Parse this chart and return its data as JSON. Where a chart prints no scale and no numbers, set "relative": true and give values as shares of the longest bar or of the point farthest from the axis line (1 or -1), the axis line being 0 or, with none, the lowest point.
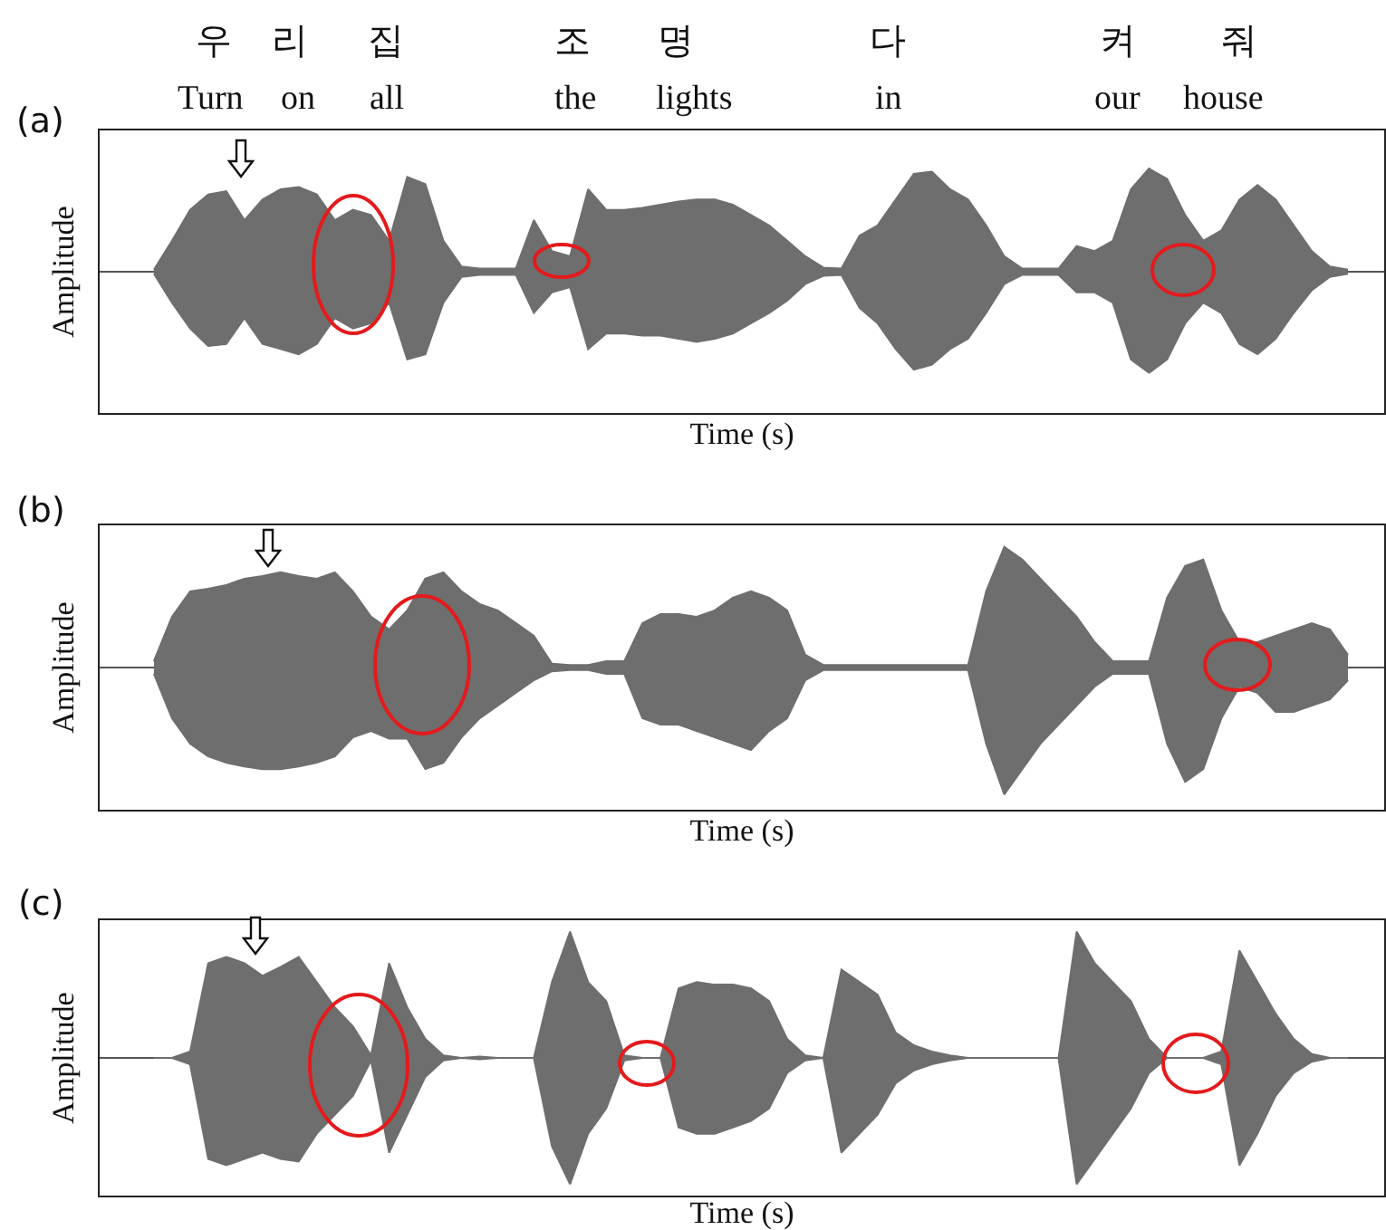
{
  "chart_data": [
    {
      "type": "area",
      "relative": true,
      "xlabel": "Time (s)",
      "ylabel": "Amplitude",
      "annotations": [
        "(a)",
        "우",
        "리",
        "집",
        "조",
        "명",
        "다",
        "켜",
        "줘",
        "Turn",
        "on",
        "all",
        "the",
        "lights",
        "in",
        "our",
        "house"
      ],
      "categories": [
        null,
        null,
        null,
        null,
        null,
        null,
        null,
        null,
        null,
        null,
        null,
        null,
        null,
        null,
        null,
        null,
        null,
        null,
        null,
        null,
        null,
        null,
        null,
        null,
        null,
        null,
        null,
        null,
        null,
        null,
        null,
        null,
        null,
        null,
        null,
        null,
        null,
        null,
        null,
        null,
        null,
        null,
        null,
        null,
        null,
        null,
        null,
        null,
        null,
        null,
        null,
        null,
        null,
        null,
        null,
        null,
        null,
        null,
        null,
        null,
        null,
        null,
        null,
        null,
        null,
        null,
        null
      ],
      "series": [
        {
          "color": "#6e6e6e",
          "values": [
            0.02,
            0.3,
            0.6,
            0.75,
            0.78,
            0.5,
            0.7,
            0.8,
            0.82,
            0.75,
            0.5,
            0.6,
            0.55,
            0.3,
            0.92,
            0.85,
            0.3,
            0.05,
            0.03,
            0.03,
            0.03,
            0.5,
            0.2,
            0.15,
            0.8,
            0.6,
            0.6,
            0.62,
            0.65,
            0.68,
            0.7,
            0.7,
            0.65,
            0.55,
            0.45,
            0.3,
            0.15,
            0.04,
            0.03,
            0.35,
            0.45,
            0.7,
            0.95,
            0.97,
            0.8,
            0.7,
            0.45,
            0.15,
            0.03,
            0.03,
            0.03,
            0.25,
            0.2,
            0.3,
            0.8,
            1.0,
            0.9,
            0.55,
            0.3,
            0.4,
            0.7,
            0.84,
            0.7,
            0.45,
            0.2,
            0.05,
            0.02
          ]
        },
        {
          "color": "#6e6e6e",
          "values": [
            -0.02,
            -0.3,
            -0.55,
            -0.72,
            -0.7,
            -0.45,
            -0.7,
            -0.75,
            -0.8,
            -0.7,
            -0.45,
            -0.55,
            -0.5,
            -0.3,
            -0.85,
            -0.8,
            -0.3,
            -0.05,
            -0.03,
            -0.03,
            -0.03,
            -0.4,
            -0.2,
            -0.15,
            -0.75,
            -0.6,
            -0.6,
            -0.62,
            -0.62,
            -0.65,
            -0.68,
            -0.65,
            -0.6,
            -0.5,
            -0.4,
            -0.28,
            -0.12,
            -0.04,
            -0.03,
            -0.35,
            -0.5,
            -0.75,
            -0.95,
            -0.9,
            -0.75,
            -0.65,
            -0.4,
            -0.12,
            -0.03,
            -0.03,
            -0.03,
            -0.2,
            -0.2,
            -0.3,
            -0.85,
            -0.98,
            -0.85,
            -0.5,
            -0.3,
            -0.4,
            -0.7,
            -0.8,
            -0.65,
            -0.4,
            -0.18,
            -0.05,
            -0.02
          ]
        }
      ]
    },
    {
      "type": "area",
      "relative": true,
      "xlabel": "Time (s)",
      "ylabel": "Amplitude",
      "annotations": [
        "(b)"
      ],
      "categories": [
        null,
        null,
        null,
        null,
        null,
        null,
        null,
        null,
        null,
        null,
        null,
        null,
        null,
        null,
        null,
        null,
        null,
        null,
        null,
        null,
        null,
        null,
        null,
        null,
        null,
        null,
        null,
        null,
        null,
        null,
        null,
        null,
        null,
        null,
        null,
        null,
        null,
        null,
        null,
        null,
        null,
        null,
        null,
        null,
        null,
        null,
        null,
        null,
        null,
        null,
        null,
        null,
        null,
        null,
        null,
        null,
        null,
        null,
        null,
        null,
        null,
        null,
        null,
        null,
        null,
        null,
        null
      ],
      "series": [
        {
          "color": "#6e6e6e",
          "values": [
            0.05,
            0.4,
            0.6,
            0.62,
            0.65,
            0.7,
            0.72,
            0.75,
            0.72,
            0.7,
            0.75,
            0.6,
            0.4,
            0.3,
            0.45,
            0.7,
            0.75,
            0.6,
            0.5,
            0.45,
            0.35,
            0.25,
            0.03,
            0.02,
            0.02,
            0.05,
            0.05,
            0.35,
            0.42,
            0.42,
            0.4,
            0.45,
            0.55,
            0.6,
            0.55,
            0.45,
            0.1,
            0.02,
            0.02,
            0.02,
            0.02,
            0.02,
            0.02,
            0.02,
            0.02,
            0.02,
            0.6,
            0.95,
            0.85,
            0.7,
            0.55,
            0.4,
            0.2,
            0.05,
            0.05,
            0.05,
            0.55,
            0.8,
            0.85,
            0.45,
            0.2,
            0.2,
            0.25,
            0.3,
            0.35,
            0.3,
            0.1
          ]
        },
        {
          "color": "#6e6e6e",
          "values": [
            -0.05,
            -0.4,
            -0.6,
            -0.7,
            -0.75,
            -0.78,
            -0.8,
            -0.8,
            -0.78,
            -0.75,
            -0.7,
            -0.55,
            -0.5,
            -0.56,
            -0.56,
            -0.8,
            -0.75,
            -0.55,
            -0.4,
            -0.3,
            -0.2,
            -0.1,
            -0.03,
            -0.02,
            -0.02,
            -0.05,
            -0.05,
            -0.4,
            -0.45,
            -0.45,
            -0.5,
            -0.55,
            -0.6,
            -0.65,
            -0.5,
            -0.4,
            -0.1,
            -0.02,
            -0.02,
            -0.02,
            -0.02,
            -0.02,
            -0.02,
            -0.02,
            -0.02,
            -0.02,
            -0.6,
            -1.0,
            -0.8,
            -0.6,
            -0.45,
            -0.3,
            -0.15,
            -0.05,
            -0.05,
            -0.05,
            -0.6,
            -0.9,
            -0.8,
            -0.4,
            -0.15,
            -0.2,
            -0.35,
            -0.35,
            -0.3,
            -0.25,
            -0.1
          ]
        }
      ]
    },
    {
      "type": "area",
      "relative": true,
      "xlabel": "Time (s)",
      "ylabel": "Amplitude",
      "annotations": [
        "(c)"
      ],
      "categories": [
        null,
        null,
        null,
        null,
        null,
        null,
        null,
        null,
        null,
        null,
        null,
        null,
        null,
        null,
        null,
        null,
        null,
        null,
        null,
        null,
        null,
        null,
        null,
        null,
        null,
        null,
        null,
        null,
        null,
        null,
        null,
        null,
        null,
        null,
        null,
        null,
        null,
        null,
        null,
        null,
        null,
        null,
        null,
        null,
        null,
        null,
        null,
        null,
        null,
        null,
        null,
        null,
        null,
        null,
        null,
        null,
        null,
        null,
        null,
        null,
        null,
        null,
        null,
        null,
        null,
        null,
        null
      ],
      "series": [
        {
          "color": "#6e6e6e",
          "values": [
            0,
            0,
            0.05,
            0.75,
            0.8,
            0.75,
            0.65,
            0.72,
            0.8,
            0.6,
            0.4,
            0.25,
            0.02,
            0.75,
            0.4,
            0.15,
            0.02,
            0,
            0.01,
            0,
            0,
            0,
            0.6,
            1.0,
            0.6,
            0.45,
            0.02,
            0,
            0,
            0.55,
            0.6,
            0.58,
            0.58,
            0.55,
            0.45,
            0.15,
            0.02,
            0,
            0.7,
            0.6,
            0.5,
            0.2,
            0.1,
            0.05,
            0.02,
            0,
            0,
            0,
            0,
            0,
            0,
            1.0,
            0.75,
            0.6,
            0.45,
            0.15,
            0,
            0,
            0,
            0.05,
            0.85,
            0.6,
            0.35,
            0.15,
            0.03,
            0,
            0
          ]
        },
        {
          "color": "#6e6e6e",
          "values": [
            0,
            0,
            -0.05,
            -0.8,
            -0.85,
            -0.8,
            -0.75,
            -0.8,
            -0.82,
            -0.6,
            -0.45,
            -0.3,
            -0.02,
            -0.75,
            -0.45,
            -0.15,
            -0.02,
            0,
            -0.01,
            0,
            0,
            0,
            -0.7,
            -1.0,
            -0.6,
            -0.4,
            -0.02,
            0,
            0,
            -0.55,
            -0.6,
            -0.6,
            -0.55,
            -0.5,
            -0.4,
            -0.12,
            -0.02,
            0,
            -0.75,
            -0.6,
            -0.45,
            -0.2,
            -0.1,
            -0.05,
            -0.02,
            0,
            0,
            0,
            0,
            0,
            0,
            -1.0,
            -0.8,
            -0.6,
            -0.4,
            -0.12,
            0,
            0,
            0,
            -0.05,
            -0.85,
            -0.6,
            -0.3,
            -0.12,
            -0.03,
            0,
            0
          ]
        }
      ]
    }
  ]
}
